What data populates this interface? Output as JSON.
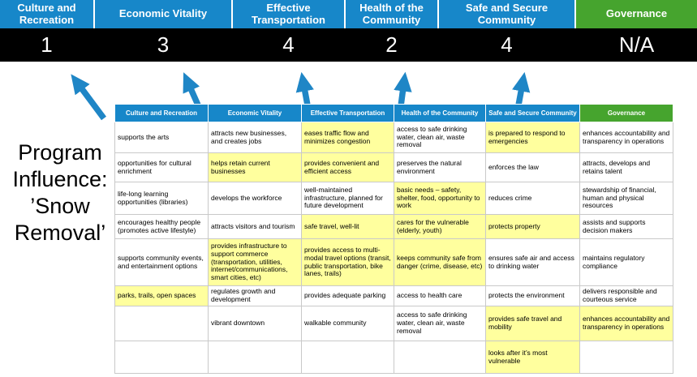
{
  "colors": {
    "category_blue": "#1787c9",
    "category_green": "#46a42e",
    "score_bar_bg": "#000000",
    "score_text": "#ffffff",
    "highlight_yellow": "#ffff9e",
    "arrow_blue": "#1f86c6",
    "table_border": "#c9c9c9"
  },
  "categories": [
    {
      "label": "Culture and Recreation",
      "score": "1",
      "theme": "blue"
    },
    {
      "label": "Economic Vitality",
      "score": "3",
      "theme": "blue"
    },
    {
      "label": "Effective Transportation",
      "score": "4",
      "theme": "blue"
    },
    {
      "label": "Health of the Community",
      "score": "2",
      "theme": "blue"
    },
    {
      "label": "Safe and Secure Community",
      "score": "4",
      "theme": "blue"
    },
    {
      "label": "Governance",
      "score": "N/A",
      "theme": "green"
    }
  ],
  "program_label": {
    "text": "Program Influence: ’Snow Removal’",
    "lines": [
      "Program",
      "Influence:",
      "’Snow",
      "Removal’"
    ]
  },
  "icons": {
    "arrow": "up-arrow"
  },
  "matrix": {
    "headers": [
      {
        "label": "Culture and Recreation",
        "theme": "blue"
      },
      {
        "label": "Economic Vitality",
        "theme": "blue"
      },
      {
        "label": "Effective Transportation",
        "theme": "blue"
      },
      {
        "label": "Health of the Community",
        "theme": "blue"
      },
      {
        "label": "Safe and Secure Community",
        "theme": "blue"
      },
      {
        "label": "Governance",
        "theme": "green"
      }
    ],
    "rows": [
      [
        {
          "text": "supports the arts",
          "highlight": false
        },
        {
          "text": "attracts new businesses, and creates jobs",
          "highlight": false
        },
        {
          "text": "eases traffic flow and minimizes congestion",
          "highlight": true
        },
        {
          "text": "access to safe drinking water, clean air, waste removal",
          "highlight": false
        },
        {
          "text": "is prepared to respond to emergencies",
          "highlight": true
        },
        {
          "text": "enhances accountability and transparency in operations",
          "highlight": false
        }
      ],
      [
        {
          "text": "opportunities for cultural enrichment",
          "highlight": false
        },
        {
          "text": "helps retain current businesses",
          "highlight": true
        },
        {
          "text": "provides convenient and efficient access",
          "highlight": true
        },
        {
          "text": "preserves the natural environment",
          "highlight": false
        },
        {
          "text": "enforces the law",
          "highlight": false
        },
        {
          "text": "attracts, develops and retains talent",
          "highlight": false
        }
      ],
      [
        {
          "text": "life-long learning opportunities (libraries)",
          "highlight": false
        },
        {
          "text": "develops the workforce",
          "highlight": false
        },
        {
          "text": "well-maintained infrastructure, planned for future development",
          "highlight": false
        },
        {
          "text": "basic needs – safety, shelter, food, opportunity to work",
          "highlight": true
        },
        {
          "text": "reduces crime",
          "highlight": false
        },
        {
          "text": "stewardship of financial, human and physical resources",
          "highlight": false
        }
      ],
      [
        {
          "text": "encourages healthy people (promotes active lifestyle)",
          "highlight": false
        },
        {
          "text": "attracts visitors and tourism",
          "highlight": false
        },
        {
          "text": "safe travel, well-lit",
          "highlight": true
        },
        {
          "text": "cares for the vulnerable (elderly, youth)",
          "highlight": true
        },
        {
          "text": "protects property",
          "highlight": true
        },
        {
          "text": "assists and supports decision makers",
          "highlight": false
        }
      ],
      [
        {
          "text": "supports community events, and entertainment options",
          "highlight": false
        },
        {
          "text": "provides infrastructure to support commerce (transportation, utilities, internet/communications, smart cities, etc)",
          "highlight": true
        },
        {
          "text": "provides access to multi-modal travel options (transit, public transportation, bike lanes, trails)",
          "highlight": true
        },
        {
          "text": "keeps community safe from danger (crime, disease, etc)",
          "highlight": true
        },
        {
          "text": "ensures safe air and access to drinking water",
          "highlight": false
        },
        {
          "text": "maintains regulatory compliance",
          "highlight": false
        }
      ],
      [
        {
          "text": "parks, trails, open spaces",
          "highlight": true
        },
        {
          "text": "regulates growth and development",
          "highlight": false
        },
        {
          "text": "provides adequate parking",
          "highlight": false
        },
        {
          "text": "access to health care",
          "highlight": false
        },
        {
          "text": "protects the environment",
          "highlight": false
        },
        {
          "text": "delivers responsible and courteous service",
          "highlight": false
        }
      ],
      [
        {
          "text": "",
          "highlight": false
        },
        {
          "text": "vibrant downtown",
          "highlight": false
        },
        {
          "text": "walkable community",
          "highlight": false
        },
        {
          "text": "access to safe drinking water, clean air, waste removal",
          "highlight": false
        },
        {
          "text": "provides safe travel and mobility",
          "highlight": true
        },
        {
          "text": "enhances accountability and transparency in operations",
          "highlight": true
        }
      ],
      [
        {
          "text": "",
          "highlight": false
        },
        {
          "text": "",
          "highlight": false
        },
        {
          "text": "",
          "highlight": false
        },
        {
          "text": "",
          "highlight": false
        },
        {
          "text": "looks after it’s most vulnerable",
          "highlight": true
        },
        {
          "text": "",
          "highlight": false
        }
      ]
    ]
  }
}
